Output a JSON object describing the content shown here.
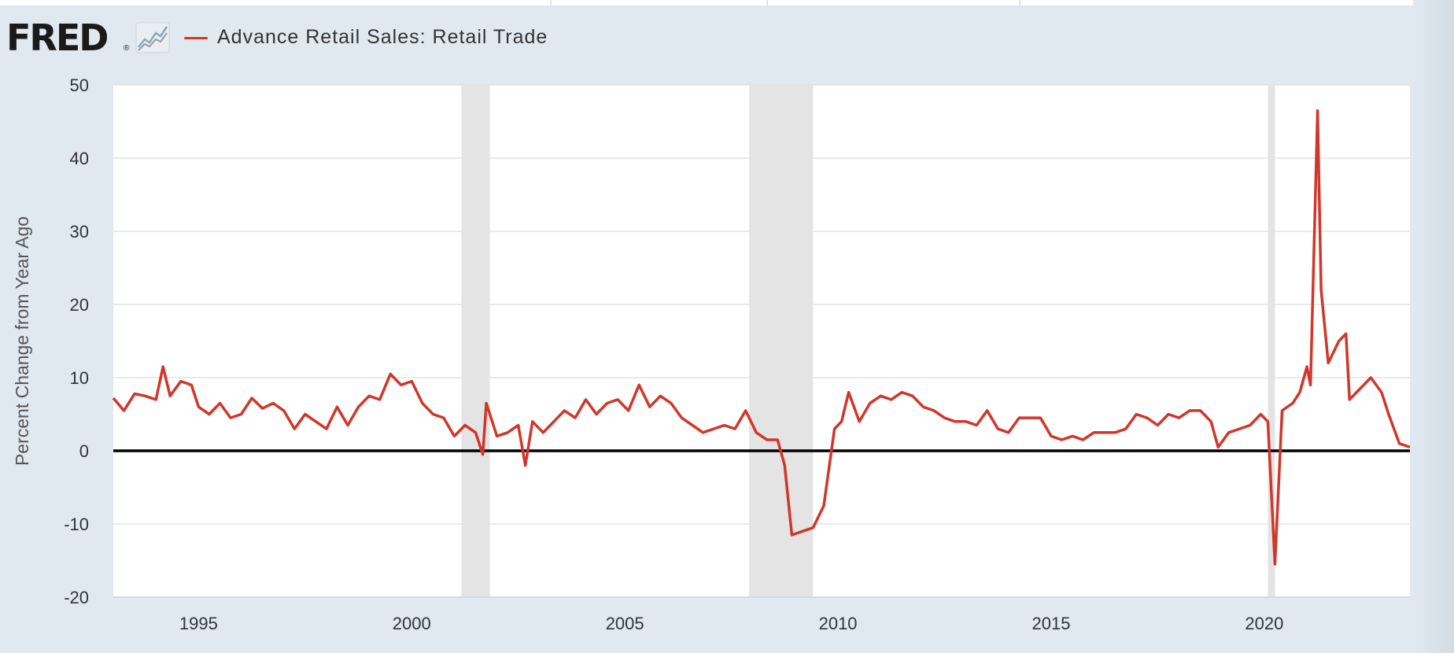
{
  "brand": {
    "logo_text": "FRED",
    "registered_mark": "®",
    "graph_icon": "line-chart-icon"
  },
  "legend": {
    "series_label": "Advance Retail Sales: Retail Trade",
    "swatch_color": "#d1362b"
  },
  "chart_data": {
    "type": "line",
    "title": "",
    "xlabel": "",
    "ylabel": "Percent Change from Year Ago",
    "ylim": [
      -20,
      50
    ],
    "y_ticks": [
      50,
      40,
      30,
      20,
      10,
      0,
      -10,
      -20
    ],
    "y_tick_labels": [
      "50",
      "40",
      "30",
      "20",
      "10",
      "0",
      "-10",
      "-20"
    ],
    "x_ticks": [
      1995,
      2000,
      2005,
      2010,
      2015,
      2020
    ],
    "x_tick_labels": [
      "1995",
      "2000",
      "2005",
      "2010",
      "2015",
      "2020"
    ],
    "xlim": [
      "1993-01",
      "2023-06"
    ],
    "grid": true,
    "zero_line": true,
    "line_color": "#d1362b",
    "recession_shading": [
      {
        "start": "2001-03",
        "end": "2001-11"
      },
      {
        "start": "2007-12",
        "end": "2009-06"
      },
      {
        "start": "2020-02",
        "end": "2020-04"
      }
    ],
    "series": [
      {
        "name": "Advance Retail Sales: Retail Trade",
        "points": [
          [
            "1993-01",
            7.2
          ],
          [
            "1993-04",
            5.5
          ],
          [
            "1993-07",
            7.8
          ],
          [
            "1993-10",
            7.5
          ],
          [
            "1994-01",
            7.0
          ],
          [
            "1994-03",
            11.5
          ],
          [
            "1994-05",
            7.5
          ],
          [
            "1994-08",
            9.5
          ],
          [
            "1994-11",
            9.0
          ],
          [
            "1995-01",
            6.0
          ],
          [
            "1995-04",
            5.0
          ],
          [
            "1995-07",
            6.5
          ],
          [
            "1995-10",
            4.5
          ],
          [
            "1996-01",
            5.0
          ],
          [
            "1996-04",
            7.2
          ],
          [
            "1996-07",
            5.8
          ],
          [
            "1996-10",
            6.5
          ],
          [
            "1997-01",
            5.5
          ],
          [
            "1997-04",
            3.0
          ],
          [
            "1997-07",
            5.0
          ],
          [
            "1997-10",
            4.0
          ],
          [
            "1998-01",
            3.0
          ],
          [
            "1998-04",
            6.0
          ],
          [
            "1998-07",
            3.5
          ],
          [
            "1998-10",
            6.0
          ],
          [
            "1999-01",
            7.5
          ],
          [
            "1999-04",
            7.0
          ],
          [
            "1999-07",
            10.5
          ],
          [
            "1999-10",
            9.0
          ],
          [
            "2000-01",
            9.5
          ],
          [
            "2000-04",
            6.5
          ],
          [
            "2000-07",
            5.0
          ],
          [
            "2000-10",
            4.5
          ],
          [
            "2001-01",
            2.0
          ],
          [
            "2001-04",
            3.5
          ],
          [
            "2001-07",
            2.5
          ],
          [
            "2001-09",
            -0.5
          ],
          [
            "2001-10",
            6.5
          ],
          [
            "2002-01",
            2.0
          ],
          [
            "2002-04",
            2.5
          ],
          [
            "2002-07",
            3.5
          ],
          [
            "2002-09",
            -2.0
          ],
          [
            "2002-11",
            4.0
          ],
          [
            "2003-02",
            2.5
          ],
          [
            "2003-05",
            4.0
          ],
          [
            "2003-08",
            5.5
          ],
          [
            "2003-11",
            4.5
          ],
          [
            "2004-02",
            7.0
          ],
          [
            "2004-05",
            5.0
          ],
          [
            "2004-08",
            6.5
          ],
          [
            "2004-11",
            7.0
          ],
          [
            "2005-02",
            5.5
          ],
          [
            "2005-05",
            9.0
          ],
          [
            "2005-08",
            6.0
          ],
          [
            "2005-11",
            7.5
          ],
          [
            "2006-02",
            6.5
          ],
          [
            "2006-05",
            4.5
          ],
          [
            "2006-08",
            3.5
          ],
          [
            "2006-11",
            2.5
          ],
          [
            "2007-02",
            3.0
          ],
          [
            "2007-05",
            3.5
          ],
          [
            "2007-08",
            3.0
          ],
          [
            "2007-11",
            5.5
          ],
          [
            "2008-02",
            2.5
          ],
          [
            "2008-05",
            1.5
          ],
          [
            "2008-08",
            1.5
          ],
          [
            "2008-10",
            -2.0
          ],
          [
            "2008-12",
            -11.5
          ],
          [
            "2009-03",
            -11.0
          ],
          [
            "2009-06",
            -10.5
          ],
          [
            "2009-09",
            -7.5
          ],
          [
            "2009-12",
            3.0
          ],
          [
            "2010-02",
            4.0
          ],
          [
            "2010-04",
            8.0
          ],
          [
            "2010-07",
            4.0
          ],
          [
            "2010-10",
            6.5
          ],
          [
            "2011-01",
            7.5
          ],
          [
            "2011-04",
            7.0
          ],
          [
            "2011-07",
            8.0
          ],
          [
            "2011-10",
            7.5
          ],
          [
            "2012-01",
            6.0
          ],
          [
            "2012-04",
            5.5
          ],
          [
            "2012-07",
            4.5
          ],
          [
            "2012-10",
            4.0
          ],
          [
            "2013-01",
            4.0
          ],
          [
            "2013-04",
            3.5
          ],
          [
            "2013-07",
            5.5
          ],
          [
            "2013-10",
            3.0
          ],
          [
            "2014-01",
            2.5
          ],
          [
            "2014-04",
            4.5
          ],
          [
            "2014-07",
            4.5
          ],
          [
            "2014-10",
            4.5
          ],
          [
            "2015-01",
            2.0
          ],
          [
            "2015-04",
            1.5
          ],
          [
            "2015-07",
            2.0
          ],
          [
            "2015-10",
            1.5
          ],
          [
            "2016-01",
            2.5
          ],
          [
            "2016-04",
            2.5
          ],
          [
            "2016-07",
            2.5
          ],
          [
            "2016-10",
            3.0
          ],
          [
            "2017-01",
            5.0
          ],
          [
            "2017-04",
            4.5
          ],
          [
            "2017-07",
            3.5
          ],
          [
            "2017-10",
            5.0
          ],
          [
            "2018-01",
            4.5
          ],
          [
            "2018-04",
            5.5
          ],
          [
            "2018-07",
            5.5
          ],
          [
            "2018-10",
            4.0
          ],
          [
            "2018-12",
            0.5
          ],
          [
            "2019-03",
            2.5
          ],
          [
            "2019-06",
            3.0
          ],
          [
            "2019-09",
            3.5
          ],
          [
            "2019-12",
            5.0
          ],
          [
            "2020-02",
            4.0
          ],
          [
            "2020-04",
            -15.5
          ],
          [
            "2020-06",
            5.5
          ],
          [
            "2020-09",
            6.5
          ],
          [
            "2020-11",
            8.0
          ],
          [
            "2021-01",
            11.5
          ],
          [
            "2021-02",
            9.0
          ],
          [
            "2021-04",
            46.5
          ],
          [
            "2021-05",
            22.0
          ],
          [
            "2021-07",
            12.0
          ],
          [
            "2021-10",
            15.0
          ],
          [
            "2021-12",
            16.0
          ],
          [
            "2022-01",
            7.0
          ],
          [
            "2022-04",
            8.5
          ],
          [
            "2022-07",
            10.0
          ],
          [
            "2022-10",
            8.0
          ],
          [
            "2022-12",
            5.0
          ],
          [
            "2023-03",
            1.0
          ],
          [
            "2023-06",
            0.5
          ]
        ]
      }
    ]
  }
}
